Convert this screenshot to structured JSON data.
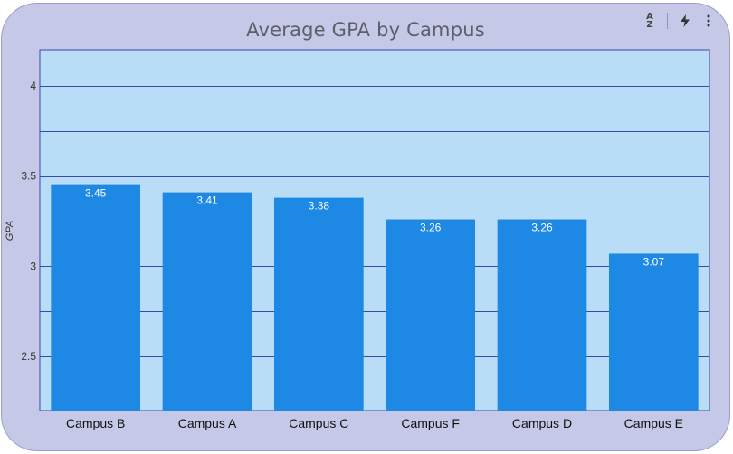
{
  "toolbar": {
    "sort_icon": "sort-az-icon",
    "insights_icon": "lightning-icon",
    "menu_icon": "more-vert-icon"
  },
  "colors": {
    "card_background": "#c5c8e6",
    "plot_background": "#b9dcf7",
    "bar": "#1e88e5",
    "gridline": "#3949ab"
  },
  "chart_data": {
    "type": "bar",
    "title": "Average GPA by Campus",
    "xlabel": "",
    "ylabel": "GPA",
    "categories": [
      "Campus B",
      "Campus A",
      "Campus C",
      "Campus F",
      "Campus D",
      "Campus E"
    ],
    "values": [
      3.45,
      3.41,
      3.38,
      3.26,
      3.26,
      3.07
    ],
    "data_labels": [
      "3.45",
      "3.41",
      "3.38",
      "3.26",
      "3.26",
      "3.07"
    ],
    "ylim": [
      2.2,
      4.2
    ],
    "yticks": [
      2.5,
      3,
      3.5,
      4
    ],
    "ytick_labels": [
      "2.5",
      "3",
      "3.5",
      "4"
    ],
    "minor_gridlines": [
      2.25,
      2.75,
      3.25,
      3.75
    ],
    "grid": true,
    "legend": "none"
  }
}
